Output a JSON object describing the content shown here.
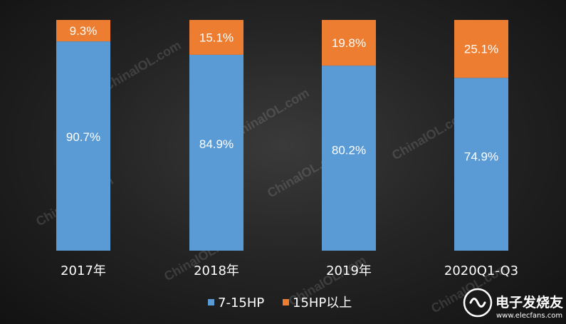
{
  "colors": {
    "background": "#1e1e1e",
    "series_7_15hp": "#5b9bd5",
    "series_15hp_plus": "#ed7d31",
    "text": "#ffffff"
  },
  "watermark": {
    "text": "ChinaIOL.com"
  },
  "logo": {
    "title": "电子发烧友",
    "url": "www.elecfans.com",
    "icon": "circuit-chip-icon"
  },
  "chart_data": {
    "type": "bar",
    "stacked": true,
    "percent_stacked": true,
    "categories": [
      "2017年",
      "2018年",
      "2019年",
      "2020Q1-Q3"
    ],
    "series": [
      {
        "name": "7-15HP",
        "values": [
          90.7,
          84.9,
          80.2,
          74.9
        ],
        "labels": [
          "90.7%",
          "84.9%",
          "80.2%",
          "74.9%"
        ],
        "color": "#5b9bd5"
      },
      {
        "name": "15HP以上",
        "values": [
          9.3,
          15.1,
          19.8,
          25.1
        ],
        "labels": [
          "9.3%",
          "15.1%",
          "19.8%",
          "25.1%"
        ],
        "color": "#ed7d31"
      }
    ],
    "ylim": [
      0,
      100
    ],
    "grid": false,
    "legend": "bottom",
    "title": "",
    "xlabel": "",
    "ylabel": ""
  }
}
